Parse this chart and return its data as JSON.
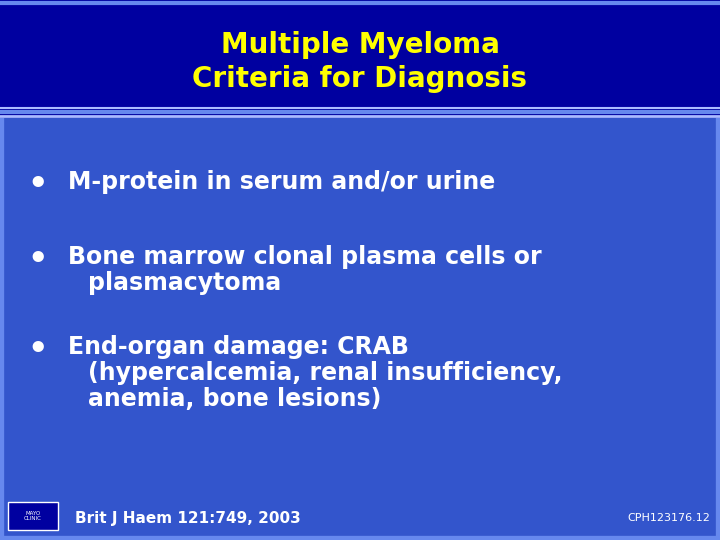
{
  "title_line1": "Multiple Myeloma",
  "title_line2": "Criteria for Diagnosis",
  "title_color": "#FFFF00",
  "title_bg_color": "#0000A0",
  "body_bg_color": "#3355CC",
  "border_color_outer": "#6688EE",
  "border_color_inner": "#AABBFF",
  "bullet_color": "#FFFFFF",
  "bullet_point_1": "M-protein in serum and/or urine",
  "bullet_point_2a": "Bone marrow clonal plasma cells or",
  "bullet_point_2b": "  plasmacytoma",
  "bullet_point_3a": "End-organ damage: CRAB",
  "bullet_point_3b": "  (hypercalcemia, renal insufficiency,",
  "bullet_point_3c": "  anemia, bone lesions)",
  "footer_left": "Brit J Haem 121:749, 2003",
  "footer_right": "CPH123176.12",
  "footer_color": "#FFFFFF",
  "title_fontsize": 20,
  "bullet_fontsize": 17,
  "footer_fontsize": 11,
  "small_footer_fontsize": 8,
  "figwidth": 7.2,
  "figheight": 5.4,
  "dpi": 100
}
